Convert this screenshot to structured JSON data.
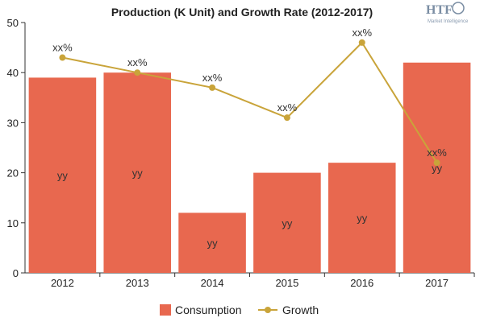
{
  "logo": {
    "mark": "HTF",
    "tagline": "Market Intelligence"
  },
  "chart_data": {
    "type": "bar",
    "title": "Production (K Unit) and Growth Rate (2012-2017)",
    "categories": [
      "2012",
      "2013",
      "2014",
      "2015",
      "2016",
      "2017"
    ],
    "ylim": [
      0,
      50
    ],
    "yticks": [
      0,
      10,
      20,
      30,
      40,
      50
    ],
    "grid": false,
    "legend_position": "bottom",
    "series": [
      {
        "name": "Consumption",
        "type": "bar",
        "color": "#e8684f",
        "values": [
          39,
          40,
          12,
          20,
          22,
          42
        ],
        "labels": [
          "yy",
          "yy",
          "yy",
          "yy",
          "yy",
          "yy"
        ]
      },
      {
        "name": "Growth",
        "type": "line",
        "color": "#c9a43a",
        "values": [
          43,
          40,
          37,
          31,
          46,
          22
        ],
        "labels": [
          "xx%",
          "xx%",
          "xx%",
          "xx%",
          "xx%",
          "xx%"
        ]
      }
    ]
  }
}
